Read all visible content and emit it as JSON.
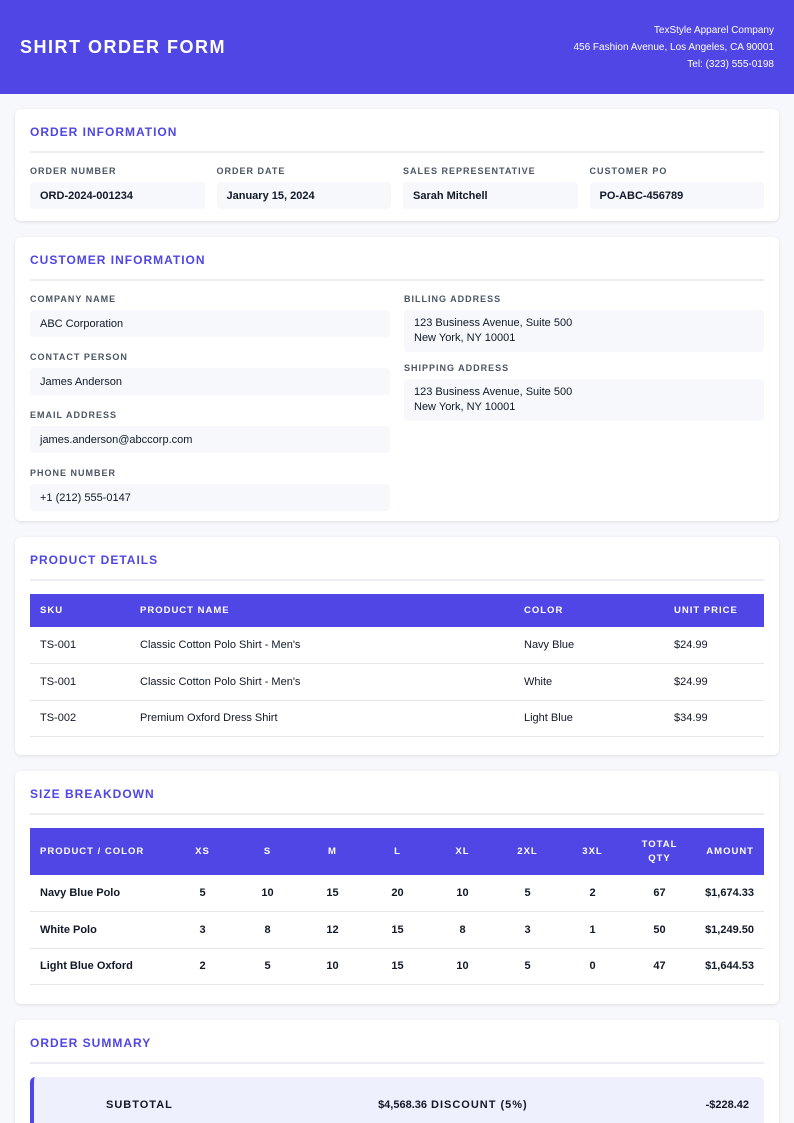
{
  "header": {
    "title": "SHIRT ORDER FORM",
    "company_name": "TexStyle Apparel Company",
    "company_address": "456 Fashion Avenue, Los Angeles, CA 90001",
    "company_phone": "Tel: (323) 555-0198"
  },
  "order_info": {
    "title": "ORDER INFORMATION",
    "fields": [
      {
        "label": "ORDER NUMBER",
        "value": "ORD-2024-001234"
      },
      {
        "label": "ORDER DATE",
        "value": "January 15, 2024"
      },
      {
        "label": "SALES REPRESENTATIVE",
        "value": "Sarah Mitchell"
      },
      {
        "label": "CUSTOMER PO",
        "value": "PO-ABC-456789"
      }
    ]
  },
  "customer_info": {
    "title": "CUSTOMER INFORMATION",
    "company_label": "COMPANY NAME",
    "company_value": "ABC Corporation",
    "contact_label": "CONTACT PERSON",
    "contact_value": "James Anderson",
    "email_label": "EMAIL ADDRESS",
    "email_value": "james.anderson@abccorp.com",
    "phone_label": "PHONE NUMBER",
    "phone_value": "+1 (212) 555-0147",
    "billing_label": "BILLING ADDRESS",
    "billing_line1": "123 Business Avenue, Suite 500",
    "billing_line2": "New York, NY 10001",
    "shipping_label": "SHIPPING ADDRESS",
    "shipping_line1": "123 Business Avenue, Suite 500",
    "shipping_line2": "New York, NY 10001"
  },
  "product_details": {
    "title": "PRODUCT DETAILS",
    "columns": [
      "SKU",
      "PRODUCT NAME",
      "COLOR",
      "UNIT PRICE"
    ],
    "rows": [
      [
        "TS-001",
        "Classic Cotton Polo Shirt - Men's",
        "Navy Blue",
        "$24.99"
      ],
      [
        "TS-001",
        "Classic Cotton Polo Shirt - Men's",
        "White",
        "$24.99"
      ],
      [
        "TS-002",
        "Premium Oxford Dress Shirt",
        "Light Blue",
        "$34.99"
      ]
    ]
  },
  "size_breakdown": {
    "title": "SIZE BREAKDOWN",
    "columns": [
      "PRODUCT / COLOR",
      "XS",
      "S",
      "M",
      "L",
      "XL",
      "2XL",
      "3XL",
      "TOTAL QTY",
      "AMOUNT"
    ],
    "rows": [
      [
        "Navy Blue Polo",
        "5",
        "10",
        "15",
        "20",
        "10",
        "5",
        "2",
        "67",
        "$1,674.33"
      ],
      [
        "White Polo",
        "3",
        "8",
        "12",
        "15",
        "8",
        "3",
        "1",
        "50",
        "$1,249.50"
      ],
      [
        "Light Blue Oxford",
        "2",
        "5",
        "10",
        "15",
        "10",
        "5",
        "0",
        "47",
        "$1,644.53"
      ]
    ]
  },
  "order_summary": {
    "title": "ORDER SUMMARY",
    "subtotal_label": "SUBTOTAL",
    "subtotal_value": "$4,568.36",
    "discount_label": "DISCOUNT (5%)",
    "discount_value": "-$228.42"
  },
  "colors": {
    "brand": "#4f46e5",
    "field_bg": "#f7f8fc",
    "summary_bg": "#eef0fd"
  }
}
